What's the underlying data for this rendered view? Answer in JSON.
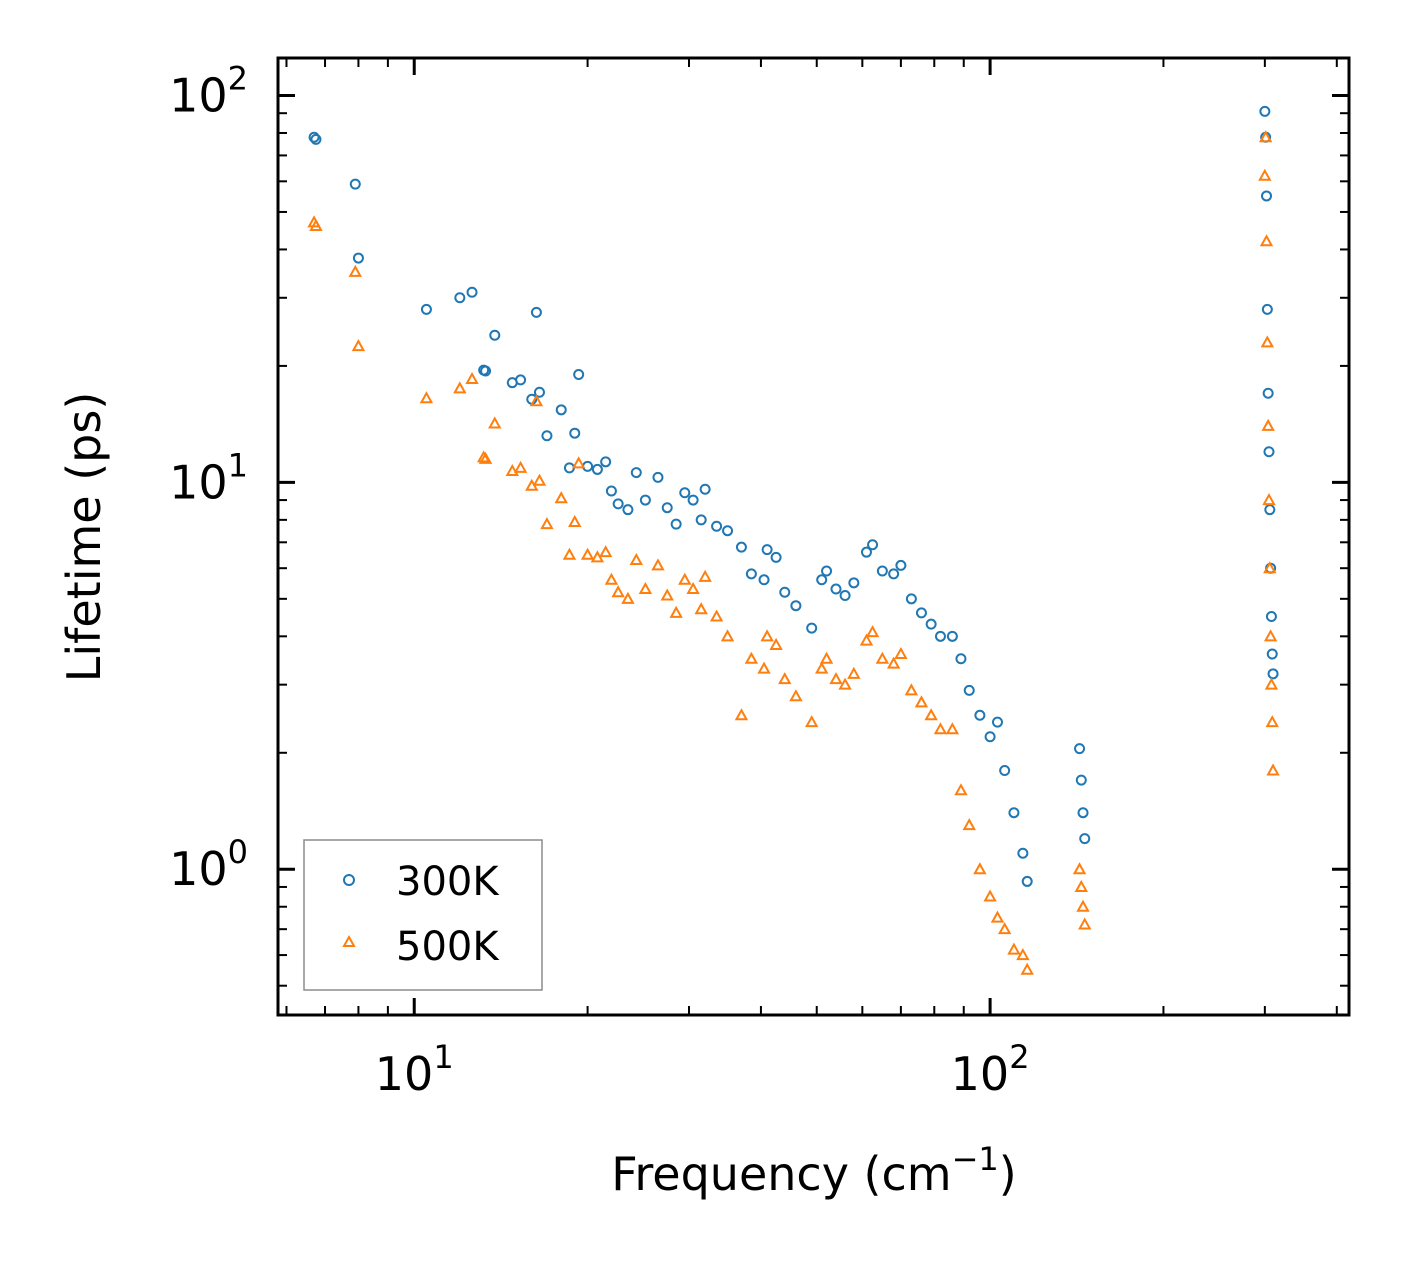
{
  "chart_data": {
    "type": "scatter",
    "xscale": "log",
    "yscale": "log",
    "xlim": [
      5.8,
      420
    ],
    "ylim": [
      0.42,
      125
    ],
    "xlabel": "Frequency (cm",
    "xlabel_sup": "−1",
    "xlabel_close": ")",
    "ylabel": "Lifetime (ps)",
    "x_ticks": [
      {
        "value": 10,
        "base": "10",
        "exp": "1"
      },
      {
        "value": 100,
        "base": "10",
        "exp": "2"
      }
    ],
    "y_ticks": [
      {
        "value": 1,
        "base": "10",
        "exp": "0"
      },
      {
        "value": 10,
        "base": "10",
        "exp": "1"
      },
      {
        "value": 100,
        "base": "10",
        "exp": "2"
      }
    ],
    "legend": {
      "position": "lower-left",
      "entries": [
        {
          "label": "300K",
          "marker": "circle",
          "color": "#1f77b4"
        },
        {
          "label": "500K",
          "marker": "triangle",
          "color": "#ff7f0e"
        }
      ]
    },
    "series": [
      {
        "name": "300K",
        "color": "#1f77b4",
        "marker": "circle",
        "points": [
          [
            6.7,
            78
          ],
          [
            6.75,
            77
          ],
          [
            7.9,
            59
          ],
          [
            8.0,
            38
          ],
          [
            10.5,
            28
          ],
          [
            12.0,
            30
          ],
          [
            12.6,
            31
          ],
          [
            13.2,
            19.5
          ],
          [
            13.3,
            19.4
          ],
          [
            13.8,
            24
          ],
          [
            14.8,
            18.1
          ],
          [
            15.3,
            18.4
          ],
          [
            16.0,
            16.4
          ],
          [
            16.3,
            27.5
          ],
          [
            16.5,
            17.1
          ],
          [
            17.0,
            13.2
          ],
          [
            18.0,
            15.4
          ],
          [
            18.6,
            10.9
          ],
          [
            19.0,
            13.4
          ],
          [
            19.3,
            19.0
          ],
          [
            20.0,
            11.0
          ],
          [
            20.8,
            10.8
          ],
          [
            21.5,
            11.3
          ],
          [
            22.0,
            9.5
          ],
          [
            22.6,
            8.8
          ],
          [
            23.5,
            8.5
          ],
          [
            24.3,
            10.6
          ],
          [
            25.2,
            9.0
          ],
          [
            26.5,
            10.3
          ],
          [
            27.5,
            8.6
          ],
          [
            28.5,
            7.8
          ],
          [
            29.5,
            9.4
          ],
          [
            30.5,
            9.0
          ],
          [
            31.5,
            8.0
          ],
          [
            32.0,
            9.6
          ],
          [
            33.5,
            7.7
          ],
          [
            35.0,
            7.5
          ],
          [
            37.0,
            6.8
          ],
          [
            38.5,
            5.8
          ],
          [
            40.5,
            5.6
          ],
          [
            41.0,
            6.7
          ],
          [
            42.5,
            6.4
          ],
          [
            44.0,
            5.2
          ],
          [
            46.0,
            4.8
          ],
          [
            49.0,
            4.2
          ],
          [
            51.0,
            5.6
          ],
          [
            52.0,
            5.9
          ],
          [
            54.0,
            5.3
          ],
          [
            56.0,
            5.1
          ],
          [
            58.0,
            5.5
          ],
          [
            61.0,
            6.6
          ],
          [
            62.5,
            6.9
          ],
          [
            65.0,
            5.9
          ],
          [
            68.0,
            5.8
          ],
          [
            70.0,
            6.1
          ],
          [
            73.0,
            5.0
          ],
          [
            76.0,
            4.6
          ],
          [
            79.0,
            4.3
          ],
          [
            82.0,
            4.0
          ],
          [
            86.0,
            4.0
          ],
          [
            89.0,
            3.5
          ],
          [
            92.0,
            2.9
          ],
          [
            96.0,
            2.5
          ],
          [
            100.0,
            2.2
          ],
          [
            103.0,
            2.4
          ],
          [
            106.0,
            1.8
          ],
          [
            110.0,
            1.4
          ],
          [
            114.0,
            1.1
          ],
          [
            116.0,
            0.93
          ],
          [
            143.0,
            2.05
          ],
          [
            144.0,
            1.7
          ],
          [
            145.0,
            1.4
          ],
          [
            146.0,
            1.2
          ],
          [
            300.0,
            91
          ],
          [
            301.0,
            78
          ],
          [
            302.0,
            55
          ],
          [
            303.0,
            28
          ],
          [
            304.0,
            17
          ],
          [
            305.0,
            12
          ],
          [
            306.0,
            8.5
          ],
          [
            307.0,
            6.0
          ],
          [
            308.0,
            4.5
          ],
          [
            309.0,
            3.6
          ],
          [
            310.0,
            3.2
          ]
        ]
      },
      {
        "name": "500K",
        "color": "#ff7f0e",
        "marker": "triangle",
        "points": [
          [
            6.7,
            47
          ],
          [
            6.75,
            46
          ],
          [
            7.9,
            35
          ],
          [
            8.0,
            22.5
          ],
          [
            10.5,
            16.5
          ],
          [
            12.0,
            17.5
          ],
          [
            12.6,
            18.5
          ],
          [
            13.2,
            11.6
          ],
          [
            13.3,
            11.5
          ],
          [
            13.8,
            14.2
          ],
          [
            14.8,
            10.7
          ],
          [
            15.3,
            10.9
          ],
          [
            16.0,
            9.8
          ],
          [
            16.3,
            16.2
          ],
          [
            16.5,
            10.1
          ],
          [
            17.0,
            7.8
          ],
          [
            18.0,
            9.1
          ],
          [
            18.6,
            6.5
          ],
          [
            19.0,
            7.9
          ],
          [
            19.3,
            11.2
          ],
          [
            20.0,
            6.5
          ],
          [
            20.8,
            6.4
          ],
          [
            21.5,
            6.6
          ],
          [
            22.0,
            5.6
          ],
          [
            22.6,
            5.2
          ],
          [
            23.5,
            5.0
          ],
          [
            24.3,
            6.3
          ],
          [
            25.2,
            5.3
          ],
          [
            26.5,
            6.1
          ],
          [
            27.5,
            5.1
          ],
          [
            28.5,
            4.6
          ],
          [
            29.5,
            5.6
          ],
          [
            30.5,
            5.3
          ],
          [
            31.5,
            4.7
          ],
          [
            32.0,
            5.7
          ],
          [
            33.5,
            4.5
          ],
          [
            35.0,
            4.0
          ],
          [
            37.0,
            2.5
          ],
          [
            38.5,
            3.5
          ],
          [
            40.5,
            3.3
          ],
          [
            41.0,
            4.0
          ],
          [
            42.5,
            3.8
          ],
          [
            44.0,
            3.1
          ],
          [
            46.0,
            2.8
          ],
          [
            49.0,
            2.4
          ],
          [
            51.0,
            3.3
          ],
          [
            52.0,
            3.5
          ],
          [
            54.0,
            3.1
          ],
          [
            56.0,
            3.0
          ],
          [
            58.0,
            3.2
          ],
          [
            61.0,
            3.9
          ],
          [
            62.5,
            4.1
          ],
          [
            65.0,
            3.5
          ],
          [
            68.0,
            3.4
          ],
          [
            70.0,
            3.6
          ],
          [
            73.0,
            2.9
          ],
          [
            76.0,
            2.7
          ],
          [
            79.0,
            2.5
          ],
          [
            82.0,
            2.3
          ],
          [
            86.0,
            2.3
          ],
          [
            89.0,
            1.6
          ],
          [
            92.0,
            1.3
          ],
          [
            96.0,
            1.0
          ],
          [
            100.0,
            0.85
          ],
          [
            103.0,
            0.75
          ],
          [
            106.0,
            0.7
          ],
          [
            110.0,
            0.62
          ],
          [
            114.0,
            0.6
          ],
          [
            116.0,
            0.55
          ],
          [
            143.0,
            1.0
          ],
          [
            144.0,
            0.9
          ],
          [
            145.0,
            0.8
          ],
          [
            146.0,
            0.72
          ],
          [
            300.0,
            62
          ],
          [
            301.0,
            78
          ],
          [
            302.0,
            42
          ],
          [
            303.0,
            23
          ],
          [
            304.0,
            14
          ],
          [
            305.0,
            9.0
          ],
          [
            306.0,
            6.0
          ],
          [
            307.0,
            4.0
          ],
          [
            308.0,
            3.0
          ],
          [
            309.0,
            2.4
          ],
          [
            310.0,
            1.8
          ]
        ]
      }
    ]
  }
}
